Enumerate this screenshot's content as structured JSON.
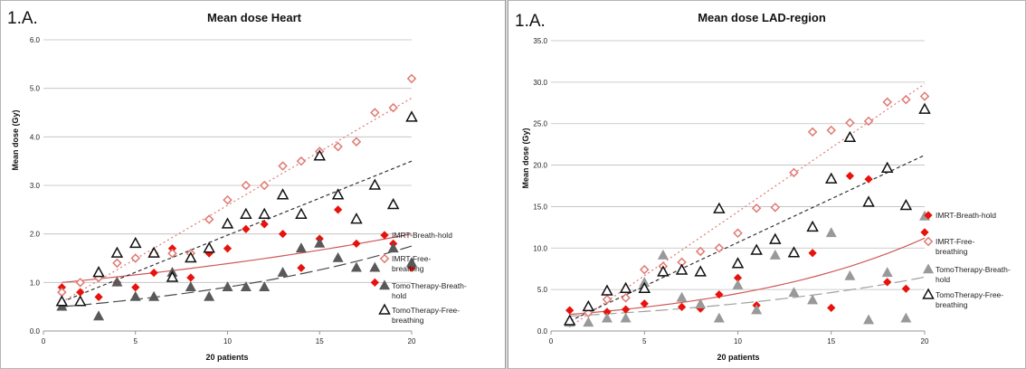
{
  "chart_data": [
    {
      "type": "scatter",
      "panel_label": "1.A.",
      "title": "Mean dose Heart",
      "xlabel": "20 patients",
      "ylabel": "Mean dose (Gy)",
      "xlim": [
        0,
        20
      ],
      "ylim": [
        0,
        6
      ],
      "xticks": [
        "0",
        "5",
        "10",
        "15",
        "20"
      ],
      "yticks": [
        "0.0",
        "1.0",
        "2.0",
        "3.0",
        "4.0",
        "5.0",
        "6.0"
      ],
      "grid": "horizontal",
      "legend_position": "right",
      "x": [
        1,
        2,
        3,
        4,
        5,
        6,
        7,
        8,
        9,
        10,
        11,
        12,
        13,
        14,
        15,
        16,
        17,
        18,
        19,
        20
      ],
      "series": [
        {
          "name": "IMRT-Breath-hold",
          "marker": "diamond-filled",
          "color": "#e8120c",
          "values": [
            0.9,
            0.8,
            0.7,
            1.0,
            0.9,
            1.2,
            1.7,
            1.1,
            1.6,
            1.7,
            2.1,
            2.2,
            2.0,
            1.3,
            1.9,
            2.5,
            1.8,
            1.0,
            1.8,
            1.3
          ],
          "trend": {
            "kind": "exponential",
            "style": "solid",
            "start": 1.0,
            "end": 2.0,
            "color": "#d05858"
          }
        },
        {
          "name": "IMRT-Free-breathing",
          "marker": "diamond-open",
          "color": "#e07a72",
          "values": [
            0.8,
            1.0,
            1.1,
            1.4,
            1.5,
            1.6,
            1.6,
            1.6,
            2.3,
            2.7,
            3.0,
            3.0,
            3.4,
            3.5,
            3.7,
            3.8,
            3.9,
            4.5,
            4.6,
            5.2
          ],
          "trend": {
            "kind": "linear",
            "style": "dotted",
            "start": 0.6,
            "end": 4.8,
            "color": "#e07a72"
          }
        },
        {
          "name": "TomoTherapy-Breath-hold",
          "marker": "triangle-filled",
          "color": "#595959",
          "values": [
            0.5,
            0.6,
            0.3,
            1.0,
            0.7,
            0.7,
            1.2,
            0.9,
            0.7,
            0.9,
            0.9,
            0.9,
            1.2,
            1.7,
            1.8,
            1.5,
            1.3,
            1.3,
            1.7,
            1.4
          ],
          "trend": {
            "kind": "exponential",
            "style": "long-dash",
            "start": 0.5,
            "end": 1.75,
            "color": "#4a4a4a"
          }
        },
        {
          "name": "TomoTherapy-Free-breathing",
          "marker": "triangle-open",
          "color": "#111111",
          "values": [
            0.6,
            0.6,
            1.2,
            1.6,
            1.8,
            1.6,
            1.1,
            1.5,
            1.7,
            2.2,
            2.4,
            2.4,
            2.8,
            2.4,
            3.6,
            2.8,
            2.3,
            3.0,
            2.6,
            4.4
          ],
          "trend": {
            "kind": "linear",
            "style": "dashed",
            "start": 0.6,
            "end": 3.5,
            "color": "#333333"
          }
        }
      ]
    },
    {
      "type": "scatter",
      "panel_label": "1.A.",
      "title": "Mean dose LAD-region",
      "xlabel": "20 patients",
      "ylabel": "Mean dose (Gy)",
      "xlim": [
        0,
        20
      ],
      "ylim": [
        0,
        35
      ],
      "xticks": [
        "0",
        "5",
        "10",
        "15",
        "20"
      ],
      "yticks": [
        "0.0",
        "5.0",
        "10.0",
        "15.0",
        "20.0",
        "25.0",
        "30.0",
        "35.0"
      ],
      "grid": "horizontal",
      "legend_position": "right",
      "x": [
        1,
        2,
        3,
        4,
        5,
        6,
        7,
        8,
        9,
        10,
        11,
        12,
        13,
        14,
        15,
        16,
        17,
        18,
        19,
        20
      ],
      "series": [
        {
          "name": "IMRT-Breath-hold",
          "marker": "diamond-filled",
          "color": "#e8120c",
          "values": [
            2.5,
            2.5,
            2.3,
            2.6,
            3.3,
            7.0,
            2.9,
            2.7,
            4.4,
            6.4,
            3.1,
            11.0,
            9.4,
            9.4,
            2.8,
            18.7,
            18.3,
            5.9,
            5.1,
            11.9
          ],
          "trend": {
            "kind": "exponential",
            "style": "solid",
            "start": 2.0,
            "end": 11.2,
            "color": "#d05858"
          }
        },
        {
          "name": "IMRT-Free-breathing",
          "marker": "diamond-open",
          "color": "#e07a72",
          "values": [
            1.0,
            2.2,
            3.8,
            4.0,
            7.4,
            7.8,
            8.3,
            9.6,
            10.0,
            11.8,
            14.8,
            14.9,
            19.1,
            24.0,
            24.2,
            25.1,
            25.3,
            27.6,
            27.9,
            28.3
          ],
          "trend": {
            "kind": "linear",
            "style": "dotted",
            "start": 0.5,
            "end": 29.8,
            "color": "#e07a72"
          }
        },
        {
          "name": "TomoTherapy-Breath-hold",
          "marker": "triangle-filled",
          "color": "#999999",
          "values": [
            1.0,
            1.0,
            1.5,
            1.5,
            5.8,
            9.1,
            4.0,
            3.2,
            1.5,
            5.5,
            2.5,
            9.1,
            4.6,
            3.7,
            11.8,
            6.6,
            1.3,
            7.0,
            1.5,
            13.8
          ],
          "trend": {
            "kind": "exponential",
            "style": "long-dash",
            "start": 1.8,
            "end": 6.5,
            "color": "#a0a0a0"
          }
        },
        {
          "name": "TomoTherapy-Free-breathing",
          "marker": "triangle-open",
          "color": "#111111",
          "values": [
            1.2,
            2.9,
            4.8,
            5.1,
            5.1,
            7.1,
            7.3,
            7.1,
            14.7,
            8.1,
            9.7,
            11.0,
            9.4,
            12.5,
            18.3,
            23.3,
            15.5,
            19.6,
            15.1,
            26.7
          ],
          "trend": {
            "kind": "linear",
            "style": "dashed",
            "start": 1.2,
            "end": 21.2,
            "color": "#333333"
          }
        }
      ]
    }
  ]
}
